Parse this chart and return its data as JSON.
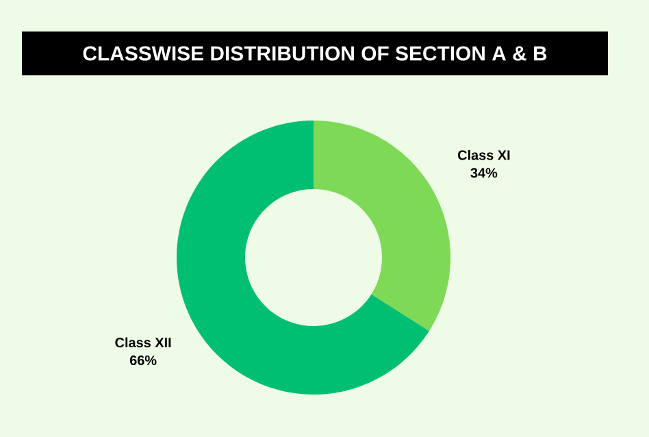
{
  "chart_data": {
    "type": "donut",
    "title": "CLASSWISE DISTRIBUTION OF SECTION A & B",
    "categories": [
      "Class XI",
      "Class XII"
    ],
    "values": [
      34,
      66
    ],
    "value_labels": [
      "34%",
      "66%"
    ],
    "colors": [
      "#7ed957",
      "#00bf73"
    ]
  }
}
